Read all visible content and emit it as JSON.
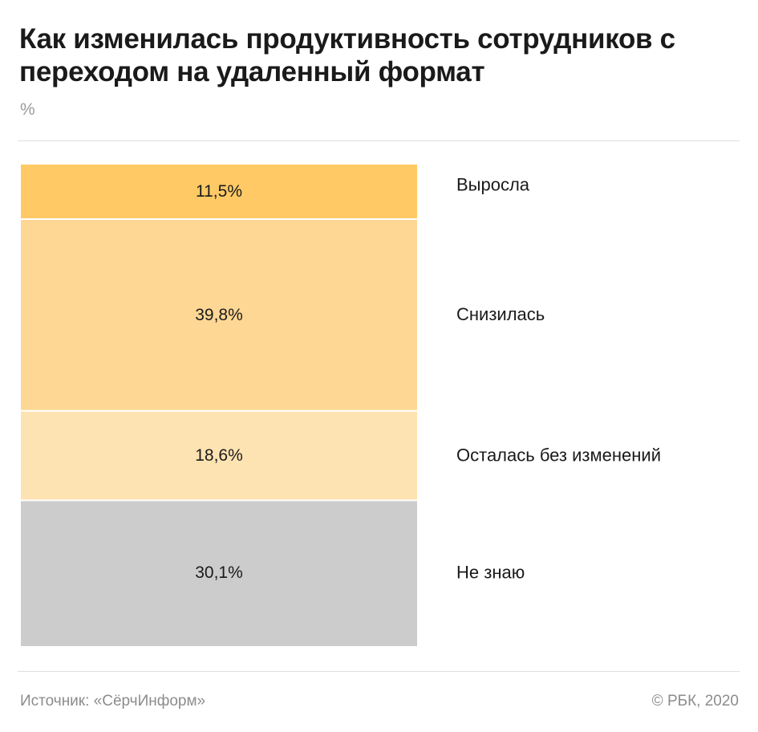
{
  "header": {
    "title": "Как изменилась продуктивность сотрудников с переходом на удаленный формат",
    "unit": "%"
  },
  "footer": {
    "source": "Источник: «СёрчИнформ»",
    "copyright": "© РБК, 2020"
  },
  "chart_data": {
    "type": "bar",
    "subtype": "stacked-100",
    "title": "Как изменилась продуктивность сотрудников с переходом на удаленный формат",
    "unit": "%",
    "categories": [
      "Выросла",
      "Снизилась",
      "Осталась без изменений",
      "Не знаю"
    ],
    "values": [
      11.5,
      39.8,
      18.6,
      30.1
    ],
    "value_labels": [
      "11,5%",
      "39,8%",
      "18,6%",
      "30,1%"
    ],
    "colors": [
      "#ffca66",
      "#fed794",
      "#fee3b2",
      "#cccccc"
    ],
    "legend": "right",
    "grid": false
  }
}
